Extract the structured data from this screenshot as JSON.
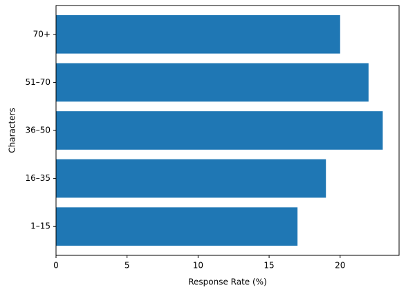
{
  "chart_data": {
    "type": "barh",
    "categories": [
      "1–15",
      "16–35",
      "36–50",
      "51–70",
      "70+"
    ],
    "values": [
      17,
      19,
      23,
      22,
      20
    ],
    "color": "#1f77b4",
    "xlabel": "Response Rate (%)",
    "ylabel": "Characters",
    "xlim": [
      0,
      24.15
    ],
    "xticks": [
      0,
      5,
      10,
      15,
      20
    ],
    "grid": false
  }
}
